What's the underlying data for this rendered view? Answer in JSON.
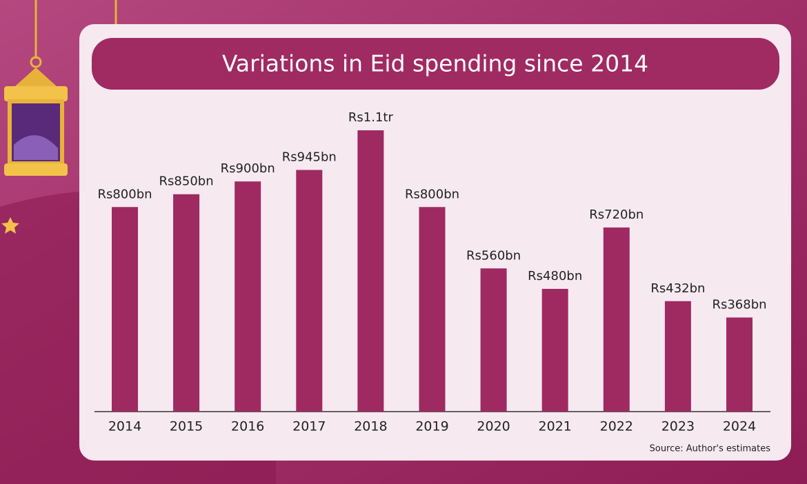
{
  "chart_data": {
    "type": "bar",
    "title": "Variations in Eid spending since 2014",
    "categories": [
      "2014",
      "2015",
      "2016",
      "2017",
      "2018",
      "2019",
      "2020",
      "2021",
      "2022",
      "2023",
      "2024"
    ],
    "values": [
      800,
      850,
      900,
      945,
      1100,
      800,
      560,
      480,
      720,
      432,
      368
    ],
    "value_labels": [
      "Rs800bn",
      "Rs850bn",
      "Rs900bn",
      "Rs945bn",
      "Rs1.1tr",
      "Rs800bn",
      "Rs560bn",
      "Rs480bn",
      "Rs720bn",
      "Rs432bn",
      "Rs368bn"
    ],
    "color": "#9e2a61",
    "source": "Source: Author's estimates"
  }
}
